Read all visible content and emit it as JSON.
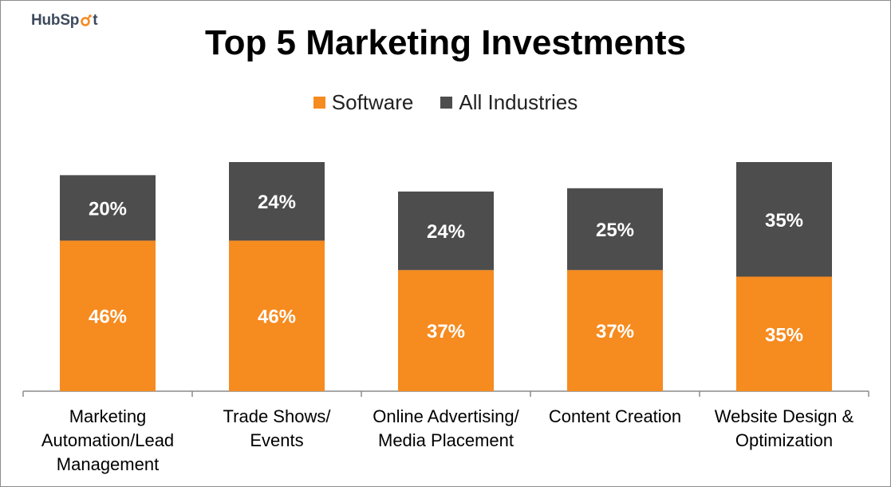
{
  "brand": {
    "logo_text": "HubSpot"
  },
  "chart_data": {
    "type": "bar",
    "stacked": true,
    "title": "Top 5 Marketing Investments",
    "categories": [
      "Marketing Automation/Lead Management",
      "Trade Shows/ Events",
      "Online Advertising/ Media Placement",
      "Content Creation",
      "Website Design & Optimization"
    ],
    "category_lines": [
      [
        "Marketing",
        "Automation/Lead",
        "Management"
      ],
      [
        "Trade Shows/",
        "Events"
      ],
      [
        "Online Advertising/",
        "Media Placement"
      ],
      [
        "Content Creation"
      ],
      [
        "Website Design &",
        "Optimization"
      ]
    ],
    "series": [
      {
        "name": "Software",
        "values": [
          46,
          46,
          37,
          37,
          35
        ],
        "labels": [
          "46%",
          "46%",
          "37%",
          "37%",
          "35%"
        ],
        "color": "#f68b1f"
      },
      {
        "name": "All Industries",
        "values": [
          20,
          24,
          24,
          25,
          35
        ],
        "labels": [
          "20%",
          "24%",
          "24%",
          "25%",
          "35%"
        ],
        "color": "#4d4d4d"
      }
    ],
    "ylim": [
      0,
      70
    ],
    "grid": false,
    "legend_position": "top"
  }
}
